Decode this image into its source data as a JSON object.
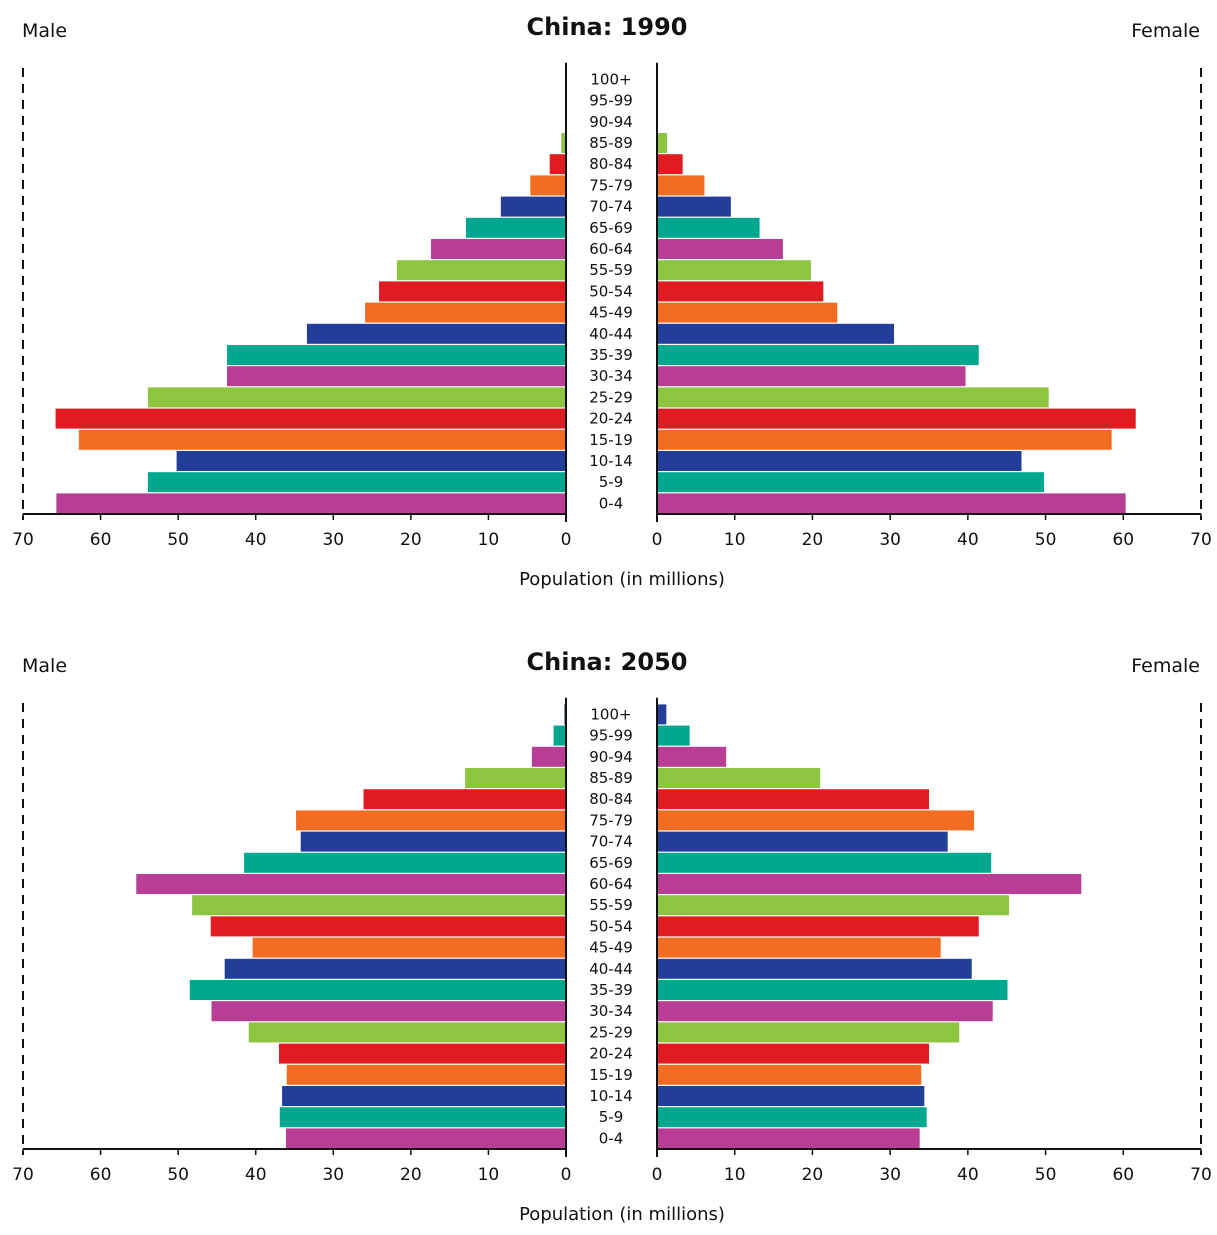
{
  "colors": [
    "#b83e95",
    "#00a78f",
    "#233e98",
    "#f26c22",
    "#e11b22",
    "#8dc440"
  ],
  "age_groups": [
    "0-4",
    "5-9",
    "10-14",
    "15-19",
    "20-24",
    "25-29",
    "30-34",
    "35-39",
    "40-44",
    "45-49",
    "50-54",
    "55-59",
    "60-64",
    "65-69",
    "70-74",
    "75-79",
    "80-84",
    "85-89",
    "90-94",
    "95-99",
    "100+"
  ],
  "chart_data": [
    {
      "type": "bar",
      "title": "China: 1990",
      "left_label": "Male",
      "right_label": "Female",
      "xlabel": "Population (in millions)",
      "xlim": [
        0,
        70
      ],
      "ticks": [
        "70",
        "60",
        "50",
        "40",
        "30",
        "20",
        "10",
        "0"
      ],
      "ticks_right": [
        "0",
        "10",
        "20",
        "30",
        "40",
        "50",
        "60",
        "70"
      ],
      "series": [
        {
          "name": "Male",
          "values": [
            65.7,
            53.9,
            50.2,
            62.8,
            65.8,
            53.9,
            43.7,
            43.7,
            33.4,
            25.9,
            24.1,
            21.8,
            17.4,
            12.9,
            8.4,
            4.6,
            2.1,
            0.6,
            0,
            0,
            0
          ]
        },
        {
          "name": "Female",
          "values": [
            60.3,
            49.8,
            46.9,
            58.5,
            61.6,
            50.4,
            39.7,
            41.4,
            30.5,
            23.2,
            21.4,
            19.8,
            16.2,
            13.2,
            9.5,
            6.1,
            3.3,
            1.3,
            0,
            0,
            0
          ]
        }
      ]
    },
    {
      "type": "bar",
      "title": "China: 2050",
      "left_label": "Male",
      "right_label": "Female",
      "xlabel": "Population (in millions)",
      "xlim": [
        0,
        70
      ],
      "ticks": [
        "70",
        "60",
        "50",
        "40",
        "30",
        "20",
        "10",
        "0"
      ],
      "ticks_right": [
        "0",
        "10",
        "20",
        "30",
        "40",
        "50",
        "60",
        "70"
      ],
      "series": [
        {
          "name": "Male",
          "values": [
            36.1,
            36.9,
            36.6,
            36.0,
            37.0,
            40.9,
            45.7,
            48.5,
            44.0,
            40.4,
            45.8,
            48.2,
            55.4,
            41.5,
            34.2,
            34.8,
            26.1,
            13.0,
            4.4,
            1.6,
            0.2
          ]
        },
        {
          "name": "Female",
          "values": [
            33.8,
            34.7,
            34.4,
            34.0,
            35.0,
            38.9,
            43.2,
            45.1,
            40.5,
            36.5,
            41.4,
            45.3,
            54.6,
            43.0,
            37.4,
            40.8,
            35.0,
            21.0,
            8.9,
            4.2,
            1.2
          ]
        }
      ]
    }
  ]
}
